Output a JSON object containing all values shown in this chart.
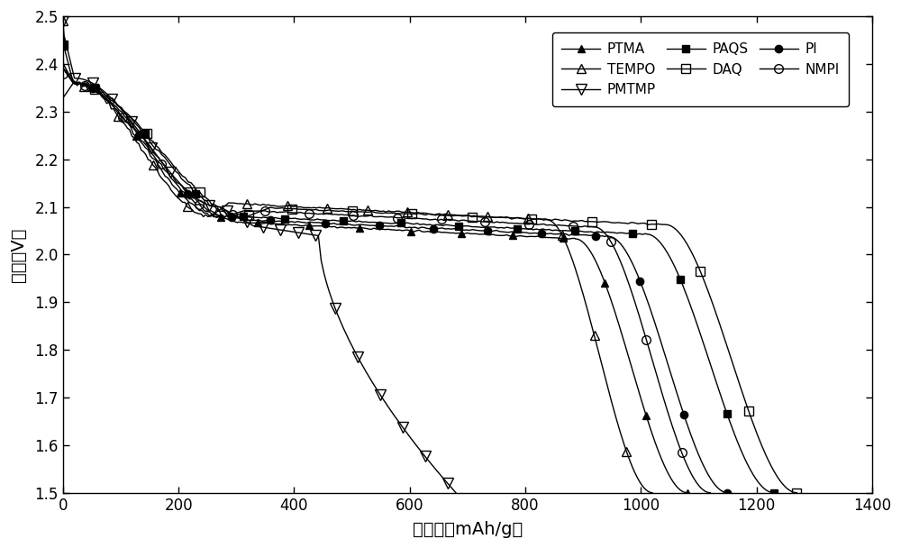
{
  "title": "",
  "xlabel": "比容量（mAh/g）",
  "ylabel": "电压（V）",
  "xlim": [
    0,
    1400
  ],
  "ylim": [
    1.5,
    2.5
  ],
  "xticks": [
    0,
    200,
    400,
    600,
    800,
    1000,
    1200,
    1400
  ],
  "yticks": [
    1.5,
    1.6,
    1.7,
    1.8,
    1.9,
    2.0,
    2.1,
    2.2,
    2.3,
    2.4,
    2.5
  ],
  "background_color": "#ffffff",
  "line_color": "#000000",
  "series": [
    {
      "label": "PTMA",
      "marker": "^",
      "filled": true,
      "max_cap": 1080,
      "v_start": 2.45,
      "v_peak2": 2.49,
      "plat_v": 2.065,
      "seed": 1
    },
    {
      "label": "PAQS",
      "marker": "s",
      "filled": true,
      "max_cap": 1230,
      "v_start": 2.44,
      "v_peak2": 2.48,
      "plat_v": 2.075,
      "seed": 2
    },
    {
      "label": "PI",
      "marker": "o",
      "filled": true,
      "max_cap": 1150,
      "v_start": 2.44,
      "v_peak2": 2.48,
      "plat_v": 2.07,
      "seed": 3
    },
    {
      "label": "TEMPO",
      "marker": "^",
      "filled": false,
      "max_cap": 1020,
      "v_start": 2.49,
      "v_peak2": 2.5,
      "plat_v": 2.105,
      "seed": 4
    },
    {
      "label": "DAQ",
      "marker": "s",
      "filled": false,
      "max_cap": 1270,
      "v_start": 2.44,
      "v_peak2": 2.48,
      "plat_v": 2.095,
      "seed": 5
    },
    {
      "label": "PMTMP",
      "marker": "v",
      "filled": false,
      "max_cap": 680,
      "v_start": 2.49,
      "v_peak2": 2.49,
      "plat_v": 2.06,
      "seed": 6
    },
    {
      "label": "NMPI",
      "marker": "o",
      "filled": false,
      "max_cap": 1120,
      "v_start": 2.38,
      "v_peak2": 2.49,
      "plat_v": 2.09,
      "seed": 7
    }
  ]
}
